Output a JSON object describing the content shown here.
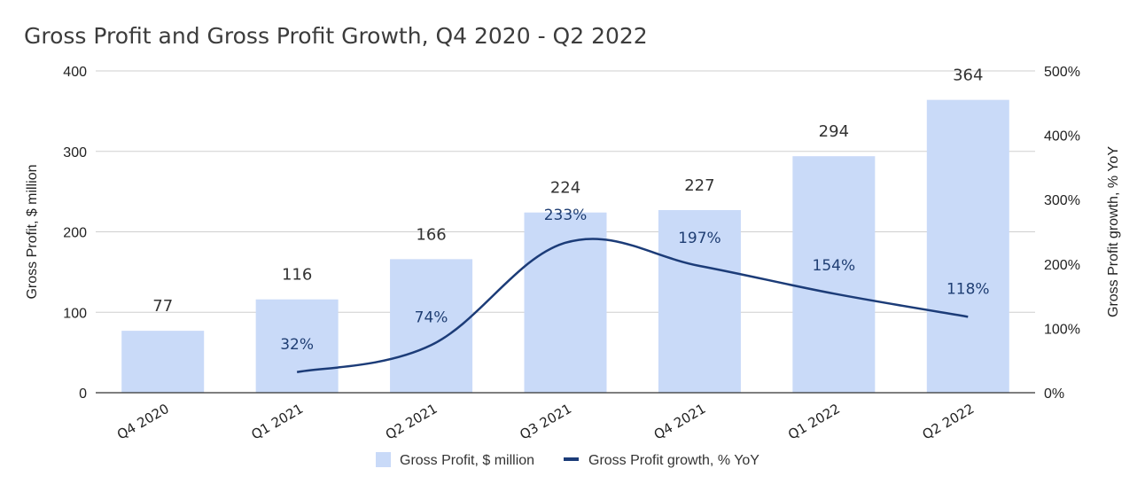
{
  "chart_data": {
    "type": "bar",
    "title": "Gross Profit and Gross Profit Growth, Q4 2020 - Q2 2022",
    "categories": [
      "Q4 2020",
      "Q1 2021",
      "Q2 2021",
      "Q3 2021",
      "Q4 2021",
      "Q1 2022",
      "Q2 2022"
    ],
    "series": [
      {
        "name": "Gross Profit, $ million",
        "type": "bar",
        "axis": "left",
        "color": "#c9daf8",
        "values": [
          77,
          116,
          166,
          224,
          227,
          294,
          364
        ],
        "labels": [
          "77",
          "116",
          "166",
          "224",
          "227",
          "294",
          "364"
        ]
      },
      {
        "name": "Gross Profit growth, % YoY",
        "type": "line",
        "axis": "right",
        "color": "#1c3c78",
        "values": [
          null,
          32,
          74,
          233,
          197,
          154,
          118
        ],
        "labels": [
          "",
          "32%",
          "74%",
          "233%",
          "197%",
          "154%",
          "118%"
        ]
      }
    ],
    "ylabel": "Gross Profit, $ million",
    "ylabel_right": "Gross Profit growth, % YoY",
    "ylim": [
      0,
      400
    ],
    "ylim_right": [
      0,
      500
    ],
    "yticks": [
      "0",
      "100",
      "200",
      "300",
      "400"
    ],
    "yticks_right": [
      "0%",
      "100%",
      "200%",
      "300%",
      "400%",
      "500%"
    ],
    "grid": true,
    "legend_position": "bottom-center"
  }
}
